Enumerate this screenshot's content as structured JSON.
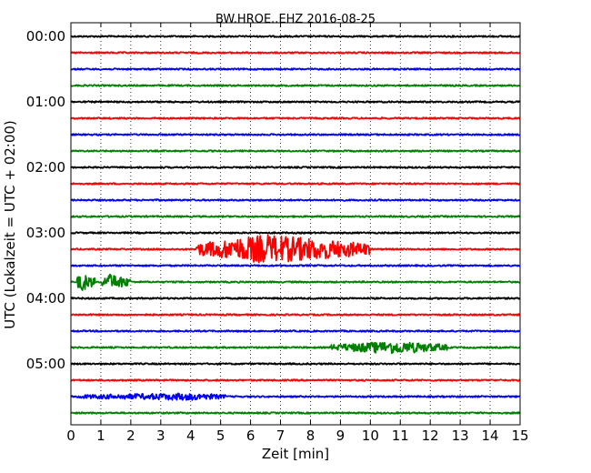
{
  "chart_data": {
    "type": "line",
    "title": "BW.HROE..EHZ 2016-08-25",
    "xlabel": "Zeit  [min]",
    "ylabel": "UTC (Lokalzeit = UTC + 02:00)",
    "xlim": [
      0,
      15
    ],
    "x_ticks": [
      "0",
      "1",
      "2",
      "3",
      "4",
      "5",
      "6",
      "7",
      "8",
      "9",
      "10",
      "11",
      "12",
      "13",
      "14",
      "15"
    ],
    "y_tick_labels": [
      "00:00",
      "01:00",
      "02:00",
      "03:00",
      "04:00",
      "05:00"
    ],
    "grid": "vertical dotted",
    "trace_colors": [
      "#000000",
      "#ff0000",
      "#0000ff",
      "#008000"
    ],
    "trace_interval_minutes": 15,
    "traces": [
      {
        "start": "00:00",
        "color": "#000000",
        "events": []
      },
      {
        "start": "00:15",
        "color": "#ff0000",
        "events": []
      },
      {
        "start": "00:30",
        "color": "#0000ff",
        "events": []
      },
      {
        "start": "00:45",
        "color": "#008000",
        "events": []
      },
      {
        "start": "01:00",
        "color": "#000000",
        "events": []
      },
      {
        "start": "01:15",
        "color": "#ff0000",
        "events": []
      },
      {
        "start": "01:30",
        "color": "#0000ff",
        "events": []
      },
      {
        "start": "01:45",
        "color": "#008000",
        "events": []
      },
      {
        "start": "02:00",
        "color": "#000000",
        "events": []
      },
      {
        "start": "02:15",
        "color": "#ff0000",
        "events": []
      },
      {
        "start": "02:30",
        "color": "#0000ff",
        "events": []
      },
      {
        "start": "02:45",
        "color": "#008000",
        "events": []
      },
      {
        "start": "03:00",
        "color": "#000000",
        "events": []
      },
      {
        "start": "03:15",
        "color": "#ff0000",
        "events": [
          {
            "start_min": 4.2,
            "peak_min": 6.5,
            "end_min": 10.0,
            "amplitude": 0.85
          }
        ]
      },
      {
        "start": "03:30",
        "color": "#0000ff",
        "events": []
      },
      {
        "start": "03:45",
        "color": "#008000",
        "events": [
          {
            "start_min": 0.2,
            "peak_min": 0.3,
            "end_min": 0.8,
            "amplitude": 0.55
          },
          {
            "start_min": 1.0,
            "peak_min": 1.3,
            "end_min": 2.0,
            "amplitude": 0.45
          }
        ]
      },
      {
        "start": "04:00",
        "color": "#000000",
        "events": []
      },
      {
        "start": "04:15",
        "color": "#ff0000",
        "events": []
      },
      {
        "start": "04:30",
        "color": "#0000ff",
        "events": []
      },
      {
        "start": "04:45",
        "color": "#008000",
        "events": [
          {
            "start_min": 8.7,
            "peak_min": 10.8,
            "end_min": 12.6,
            "amplitude": 0.35
          }
        ]
      },
      {
        "start": "05:00",
        "color": "#000000",
        "events": []
      },
      {
        "start": "05:15",
        "color": "#ff0000",
        "events": []
      },
      {
        "start": "05:30",
        "color": "#0000ff",
        "events": [
          {
            "start_min": 0.2,
            "peak_min": 4.0,
            "end_min": 5.2,
            "amplitude": 0.18
          }
        ]
      },
      {
        "start": "05:45",
        "color": "#008000",
        "events": []
      }
    ]
  }
}
